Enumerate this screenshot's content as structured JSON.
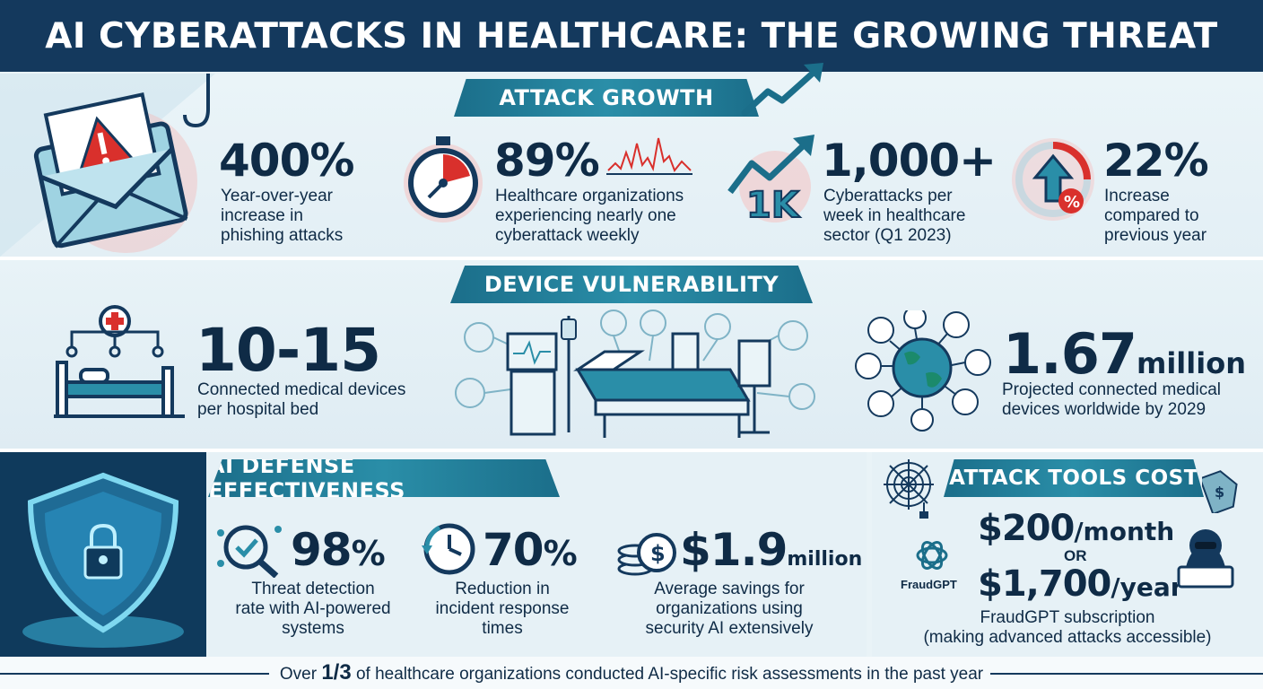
{
  "title": "AI CYBERATTACKS IN HEALTHCARE: THE GROWING THREAT",
  "sections": {
    "attack_growth": {
      "label": "ATTACK GROWTH",
      "stats": [
        {
          "value": "400%",
          "desc": [
            "Year-over-year",
            "increase in",
            "phishing attacks"
          ],
          "icon": "phishing-email-icon"
        },
        {
          "value": "89%",
          "desc": [
            "Healthcare organizations",
            "experiencing nearly one",
            "cyberattack weekly"
          ],
          "icon": "stopwatch-icon"
        },
        {
          "value": "1,000+",
          "desc": [
            "Cyberattacks per",
            "week in healthcare",
            "sector (Q1 2023)"
          ],
          "icon": "1k-growth-icon",
          "icon_text": "1K"
        },
        {
          "value": "22%",
          "desc": [
            "Increase",
            "compared to",
            "previous year"
          ],
          "icon": "percent-increase-icon",
          "icon_text": "%"
        }
      ]
    },
    "device_vulnerability": {
      "label": "DEVICE VULNERABILITY",
      "stats": [
        {
          "value": "10-15",
          "desc": [
            "Connected medical devices",
            "per hospital bed"
          ],
          "icon": "hospital-bed-icon"
        },
        {
          "value": "1.67",
          "unit": "million",
          "desc": [
            "Projected connected medical",
            "devices worldwide by 2029"
          ],
          "icon": "globe-network-icon"
        }
      ]
    },
    "ai_defense": {
      "label": "AI DEFENSE EFFECTIVENESS",
      "stats": [
        {
          "value": "98",
          "unit": "%",
          "desc": [
            "Threat detection",
            "rate with AI-powered",
            "systems"
          ],
          "icon": "magnifier-check-icon"
        },
        {
          "value": "70",
          "unit": "%",
          "desc": [
            "Reduction in",
            "incident response",
            "times"
          ],
          "icon": "clock-icon"
        },
        {
          "value": "$1.9",
          "unit": "million",
          "desc": [
            "Average savings for",
            "organizations using",
            "security AI extensively"
          ],
          "icon": "coins-icon"
        }
      ]
    },
    "attack_tools": {
      "label": "ATTACK TOOLS COST",
      "price_month": "$200",
      "price_month_unit": "/month",
      "or_text": "OR",
      "price_year": "$1,700",
      "price_year_unit": "/year",
      "brand": "FraudGPT",
      "desc": [
        "FraudGPT subscription",
        "(making advanced attacks accessible)"
      ]
    }
  },
  "footer": {
    "pre": "Over ",
    "highlight": "1/3",
    "post": " of healthcare organizations conducted AI-specific risk assessments in the past year"
  },
  "colors": {
    "navy": "#14395d",
    "teal": "#1b6e8a",
    "alert_red": "#d9302c",
    "text": "#0f2b46"
  }
}
